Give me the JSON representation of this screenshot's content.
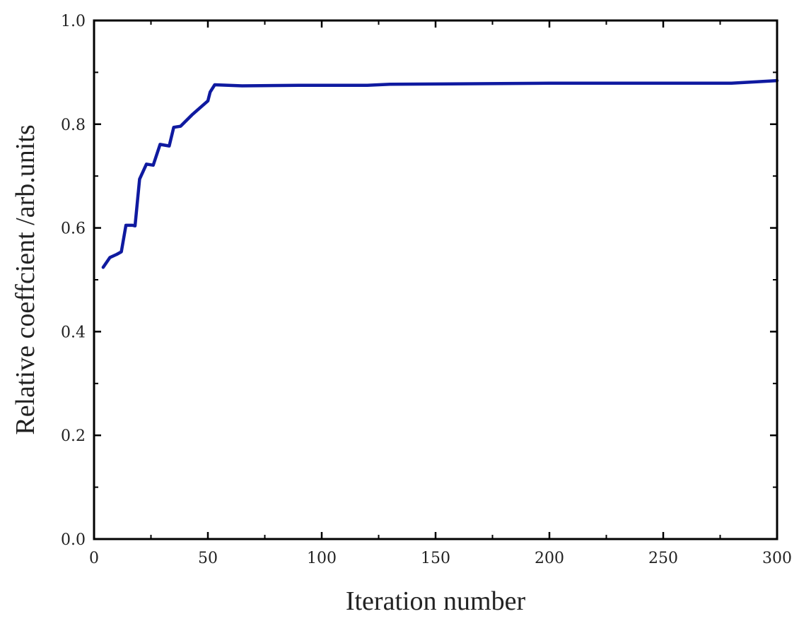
{
  "chart_data": {
    "type": "line",
    "title": "",
    "xlabel": "Iteration number",
    "ylabel": "Relative coeffcient /arb.units",
    "xlim": [
      0,
      300
    ],
    "ylim": [
      0.0,
      1.0
    ],
    "x_ticks": [
      0,
      50,
      100,
      150,
      200,
      250,
      300
    ],
    "y_ticks": [
      0.0,
      0.2,
      0.4,
      0.6,
      0.8,
      1.0
    ],
    "x_tick_labels": [
      "0",
      "50",
      "100",
      "150",
      "200",
      "250",
      "300"
    ],
    "y_tick_labels": [
      "0.0",
      "0.2",
      "0.4",
      "0.6",
      "0.8",
      "1.0"
    ],
    "grid": false,
    "series": [
      {
        "color": "#0f1aa0",
        "x": [
          4,
          7,
          10,
          12,
          14,
          17,
          18,
          20,
          23,
          26,
          29,
          33,
          35,
          38,
          43,
          50,
          51,
          53,
          65,
          90,
          120,
          130,
          200,
          250,
          280,
          300
        ],
        "y": [
          0.524,
          0.543,
          0.549,
          0.554,
          0.605,
          0.605,
          0.604,
          0.694,
          0.723,
          0.721,
          0.761,
          0.758,
          0.794,
          0.796,
          0.818,
          0.845,
          0.862,
          0.876,
          0.874,
          0.875,
          0.875,
          0.877,
          0.879,
          0.879,
          0.879,
          0.884
        ]
      }
    ]
  }
}
